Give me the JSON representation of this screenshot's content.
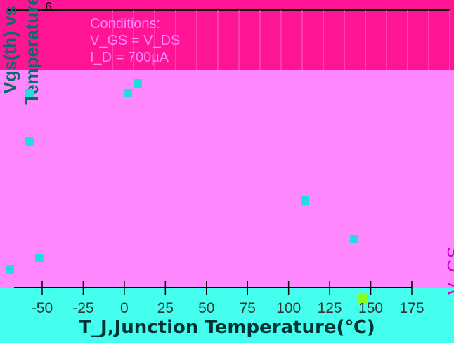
{
  "chart_data": {
    "type": "line",
    "top_number": "6",
    "conditions": {
      "heading": "Conditions:",
      "line2": "V_GS = V_DS",
      "line3": "I_D = 700µA"
    },
    "ytitle": "Vgs(th) vs Temperature",
    "xlabel": "T_J,Junction Temperature(℃)",
    "x_ticks": [
      "-50",
      "-25",
      "0",
      "25",
      "50",
      "75",
      "100",
      "125",
      "150",
      "175"
    ],
    "xlim": [
      -50,
      175
    ],
    "right_label": "V_GS",
    "colors": {
      "band_top": "#ff1493",
      "band_mid": "#ff88ff",
      "band_bottom": "#44ffee",
      "axis": "#000000",
      "grid": "#ff66cc"
    }
  }
}
